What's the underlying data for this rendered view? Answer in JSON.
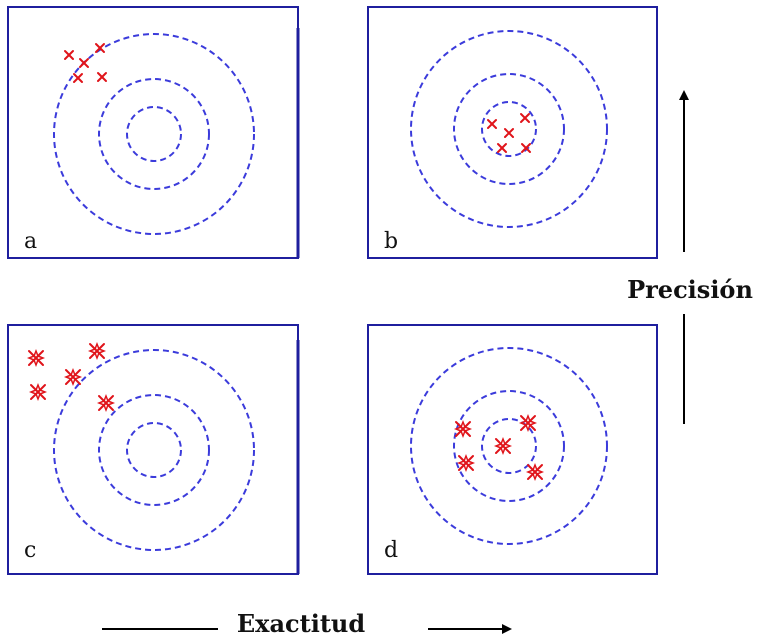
{
  "panels": [
    {
      "id": "a",
      "label": "a",
      "hits": "clustered, off-center"
    },
    {
      "id": "b",
      "label": "b",
      "hits": "clustered, on-center"
    },
    {
      "id": "c",
      "label": "c",
      "hits": "scattered, off-center"
    },
    {
      "id": "d",
      "label": "d",
      "hits": "scattered, on-center"
    }
  ],
  "axes": {
    "vertical": "Precisión",
    "horizontal": "Exactitud"
  },
  "colors": {
    "frame": "#1f1f9e",
    "rings": "#3b3bdb",
    "hits": "#e0141a",
    "arrows": "#000000"
  }
}
